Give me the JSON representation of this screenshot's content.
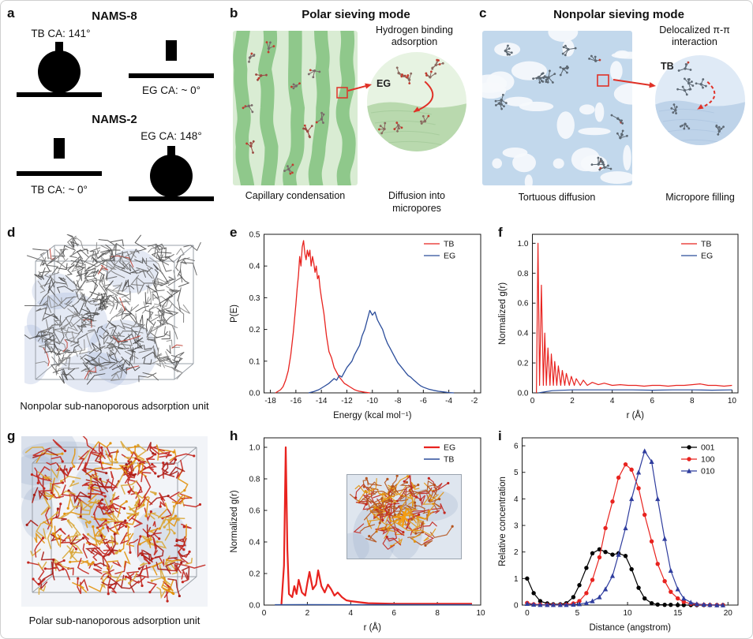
{
  "figure": {
    "background": "#ffffff",
    "panels": {
      "a": {
        "label": "a",
        "groups": [
          {
            "title": "NAMS-8",
            "left_label": "TB CA: 141°",
            "right_label": "EG CA: ~ 0°"
          },
          {
            "title": "NAMS-2",
            "left_label": "TB CA: ~ 0°",
            "right_label": "EG CA: 148°"
          }
        ]
      },
      "b": {
        "label": "b",
        "title": "Polar sieving mode",
        "inset_title": "Hydrogen binding adsorption",
        "molecule_label": "EG",
        "caption_left": "Capillary condensation",
        "caption_right": "Diffusion into micropores"
      },
      "c": {
        "label": "c",
        "title": "Nonpolar sieving mode",
        "inset_title": "Delocalized π-π interaction",
        "molecule_label": "TB",
        "caption_left": "Tortuous diffusion",
        "caption_right": "Micropore filling"
      },
      "d": {
        "label": "d",
        "caption": "Nonpolar sub-nanoporous adsorption unit"
      },
      "e": {
        "label": "e"
      },
      "f": {
        "label": "f"
      },
      "g": {
        "label": "g",
        "caption": "Polar sub-nanoporous adsorption unit"
      },
      "h": {
        "label": "h"
      },
      "i": {
        "label": "i"
      }
    },
    "colors": {
      "tb_red": "#e8231f",
      "eg_blue": "#2b4d9b",
      "polar_green": "#8bc687",
      "nonpolar_blue": "#c2d8ec",
      "arrow_red": "#e03127"
    }
  },
  "chart_data": [
    {
      "id": "e",
      "type": "line",
      "title": "",
      "xlabel": "Energy (kcal mol⁻¹)",
      "ylabel": "P(E)",
      "xlim": [
        -18.5,
        -1.5
      ],
      "ylim": [
        0,
        0.5
      ],
      "xticks": [
        -18,
        -16,
        -14,
        -12,
        -10,
        -8,
        -6,
        -4,
        -2
      ],
      "xtick_labels": [
        "-18",
        "-16",
        "-14",
        "-12",
        "-10",
        "-8",
        "-6",
        "-4",
        "-2"
      ],
      "yticks": [
        0,
        0.1,
        0.2,
        0.3,
        0.4,
        0.5
      ],
      "ytick_labels": [
        "0.0",
        "0.1",
        "0.2",
        "0.3",
        "0.4",
        "0.5"
      ],
      "grid": false,
      "legend_position": "top-right",
      "series": [
        {
          "name": "TB",
          "color": "#e8231f",
          "width": 1.3,
          "x": [
            -17.6,
            -17.4,
            -17.2,
            -17,
            -16.8,
            -16.6,
            -16.4,
            -16.2,
            -16,
            -15.9,
            -15.8,
            -15.7,
            -15.6,
            -15.5,
            -15.4,
            -15.3,
            -15.2,
            -15.1,
            -15,
            -14.9,
            -14.8,
            -14.7,
            -14.6,
            -14.5,
            -14.4,
            -14.3,
            -14.2,
            -14.1,
            -14,
            -13.8,
            -13.6,
            -13.4,
            -13.2,
            -13,
            -12.8,
            -12.6,
            -12.4,
            -12.2,
            -12,
            -11.8,
            -11.6,
            -11.4,
            -11.2,
            -11,
            -10.6,
            -10.2
          ],
          "y": [
            0,
            0.005,
            0.01,
            0.02,
            0.04,
            0.07,
            0.12,
            0.19,
            0.28,
            0.33,
            0.37,
            0.43,
            0.4,
            0.46,
            0.48,
            0.44,
            0.42,
            0.45,
            0.43,
            0.45,
            0.4,
            0.43,
            0.41,
            0.38,
            0.4,
            0.36,
            0.37,
            0.33,
            0.3,
            0.25,
            0.18,
            0.13,
            0.11,
            0.08,
            0.065,
            0.05,
            0.04,
            0.03,
            0.025,
            0.02,
            0.015,
            0.01,
            0.007,
            0.005,
            0.002,
            0
          ]
        },
        {
          "name": "EG",
          "color": "#2b4d9b",
          "width": 1.3,
          "x": [
            -15,
            -14.6,
            -14.2,
            -13.8,
            -13.4,
            -13,
            -12.8,
            -12.6,
            -12.4,
            -12.2,
            -12,
            -11.8,
            -11.6,
            -11.4,
            -11.2,
            -11,
            -10.8,
            -10.6,
            -10.4,
            -10.2,
            -10,
            -9.8,
            -9.6,
            -9.4,
            -9.2,
            -9,
            -8.8,
            -8.6,
            -8.4,
            -8.2,
            -8,
            -7.8,
            -7.6,
            -7.4,
            -7.2,
            -7,
            -6.8,
            -6.6,
            -6.4,
            -6.2,
            -6,
            -5.6,
            -5.2,
            -4.8,
            -4.4,
            -4,
            -3.6
          ],
          "y": [
            0,
            0.004,
            0.01,
            0.02,
            0.03,
            0.045,
            0.04,
            0.055,
            0.05,
            0.065,
            0.08,
            0.09,
            0.1,
            0.12,
            0.135,
            0.15,
            0.18,
            0.2,
            0.23,
            0.26,
            0.245,
            0.255,
            0.23,
            0.215,
            0.2,
            0.175,
            0.155,
            0.14,
            0.125,
            0.11,
            0.095,
            0.085,
            0.075,
            0.065,
            0.055,
            0.05,
            0.042,
            0.035,
            0.028,
            0.022,
            0.018,
            0.012,
            0.008,
            0.005,
            0.003,
            0.001,
            0
          ]
        }
      ]
    },
    {
      "id": "f",
      "type": "line",
      "title": "",
      "xlabel": "r (Å)",
      "ylabel": "Normalized g(r)",
      "xlim": [
        0,
        10.3
      ],
      "ylim": [
        0,
        1.06
      ],
      "xticks": [
        0,
        2,
        4,
        6,
        8,
        10
      ],
      "xtick_labels": [
        "0",
        "2",
        "4",
        "6",
        "8",
        "10"
      ],
      "yticks": [
        0,
        0.2,
        0.4,
        0.6,
        0.8,
        1.0
      ],
      "ytick_labels": [
        "0.0",
        "0.2",
        "0.4",
        "0.6",
        "0.8",
        "1.0"
      ],
      "grid": false,
      "legend_position": "top-right",
      "series": [
        {
          "name": "TB",
          "color": "#e8231f",
          "width": 1.2,
          "x": [
            0.2,
            0.28,
            0.36,
            0.45,
            0.55,
            0.62,
            0.7,
            0.78,
            0.88,
            0.95,
            1.05,
            1.12,
            1.22,
            1.3,
            1.42,
            1.5,
            1.62,
            1.7,
            1.85,
            1.95,
            2.1,
            2.2,
            2.4,
            2.55,
            2.75,
            3.0,
            3.3,
            3.6,
            4.0,
            4.4,
            4.8,
            5.2,
            5.6,
            6.0,
            6.4,
            6.8,
            7.2,
            7.6,
            8.0,
            8.4,
            8.8,
            9.2,
            9.6,
            10.0
          ],
          "y": [
            0,
            1.0,
            0.05,
            0.72,
            0.05,
            0.4,
            0.05,
            0.3,
            0.05,
            0.26,
            0.05,
            0.21,
            0.05,
            0.18,
            0.05,
            0.15,
            0.05,
            0.13,
            0.05,
            0.11,
            0.05,
            0.095,
            0.05,
            0.085,
            0.05,
            0.07,
            0.055,
            0.065,
            0.05,
            0.055,
            0.05,
            0.05,
            0.045,
            0.05,
            0.05,
            0.045,
            0.05,
            0.05,
            0.055,
            0.06,
            0.05,
            0.05,
            0.045,
            0.05
          ]
        },
        {
          "name": "EG",
          "color": "#2b4d9b",
          "width": 1.2,
          "x": [
            0.3,
            1,
            2,
            3,
            4,
            5,
            6,
            7,
            8,
            9,
            10
          ],
          "y": [
            0,
            0.015,
            0.02,
            0.02,
            0.02,
            0.02,
            0.018,
            0.02,
            0.02,
            0.018,
            0.02
          ]
        }
      ]
    },
    {
      "id": "h",
      "type": "line",
      "title": "",
      "xlabel": "r (Å)",
      "ylabel": "Normalized g(r)",
      "xlim": [
        0,
        10
      ],
      "ylim": [
        0,
        1.06
      ],
      "xticks": [
        0,
        2,
        4,
        6,
        8,
        10
      ],
      "xtick_labels": [
        "0",
        "2",
        "4",
        "6",
        "8",
        "10"
      ],
      "yticks": [
        0,
        0.2,
        0.4,
        0.6,
        0.8,
        1.0
      ],
      "ytick_labels": [
        "0.0",
        "0.2",
        "0.4",
        "0.6",
        "0.8",
        "1.0"
      ],
      "grid": false,
      "legend_position": "top-right",
      "series": [
        {
          "name": "EG",
          "color": "#e8231f",
          "width": 2.2,
          "x": [
            0.8,
            0.92,
            1.0,
            1.08,
            1.15,
            1.3,
            1.4,
            1.5,
            1.6,
            1.75,
            1.9,
            2.0,
            2.1,
            2.25,
            2.4,
            2.5,
            2.65,
            2.8,
            2.95,
            3.1,
            3.25,
            3.4,
            3.6,
            3.8,
            4.0,
            4.4,
            4.8,
            5.4,
            6.0,
            7.0,
            8.0,
            9.0,
            9.6
          ],
          "y": [
            0,
            0.25,
            1.0,
            0.35,
            0.07,
            0.05,
            0.12,
            0.07,
            0.16,
            0.08,
            0.06,
            0.14,
            0.21,
            0.1,
            0.13,
            0.22,
            0.12,
            0.08,
            0.13,
            0.1,
            0.06,
            0.08,
            0.05,
            0.03,
            0.025,
            0.018,
            0.012,
            0.01,
            0.008,
            0.008,
            0.008,
            0.008,
            0.008
          ]
        },
        {
          "name": "TB",
          "color": "#2b4d9b",
          "width": 1.4,
          "x": [
            0.5,
            2,
            4,
            6,
            8,
            9.6
          ],
          "y": [
            0.002,
            0.003,
            0.002,
            0.003,
            0.002,
            0.002
          ]
        }
      ]
    },
    {
      "id": "i",
      "type": "line",
      "title": "",
      "xlabel": "Distance (angstrom)",
      "ylabel": "Relative concentration",
      "xlim": [
        -0.5,
        21
      ],
      "ylim": [
        0,
        6.3
      ],
      "xticks": [
        0,
        5,
        10,
        15,
        20
      ],
      "xtick_labels": [
        "0",
        "5",
        "10",
        "15",
        "20"
      ],
      "yticks": [
        0,
        1,
        2,
        3,
        4,
        5,
        6
      ],
      "ytick_labels": [
        "0",
        "1",
        "2",
        "3",
        "4",
        "5",
        "6"
      ],
      "grid": false,
      "legend_position": "top-right",
      "series": [
        {
          "name": "001",
          "color": "#000000",
          "width": 1.2,
          "marker": "circle",
          "x": [
            0,
            0.65,
            1.3,
            2,
            2.6,
            3.3,
            3.9,
            4.6,
            5.2,
            5.9,
            6.5,
            7.2,
            7.8,
            8.5,
            9.1,
            9.8,
            10.4,
            11.1,
            11.7,
            12.4,
            13,
            13.7,
            14.3,
            15,
            15.6,
            16.3,
            16.9,
            17.6,
            18.2,
            18.9,
            19.5
          ],
          "y": [
            1.0,
            0.45,
            0.15,
            0.06,
            0.03,
            0.03,
            0.07,
            0.3,
            0.75,
            1.4,
            1.95,
            2.1,
            2.0,
            1.9,
            1.95,
            1.85,
            1.35,
            0.65,
            0.25,
            0.07,
            0.02,
            0.01,
            0.01,
            0,
            0,
            0,
            0,
            0,
            0,
            0,
            0
          ]
        },
        {
          "name": "100",
          "color": "#e8231f",
          "width": 1.2,
          "marker": "circle",
          "x": [
            0,
            0.65,
            1.3,
            2,
            2.6,
            3.3,
            3.9,
            4.6,
            5.2,
            5.9,
            6.5,
            7.2,
            7.8,
            8.5,
            9.1,
            9.8,
            10.4,
            11.1,
            11.7,
            12.4,
            13,
            13.7,
            14.3,
            15,
            15.6,
            16.3,
            16.9,
            17.6,
            18.2,
            18.9,
            19.5
          ],
          "y": [
            0.08,
            0.03,
            0.02,
            0.01,
            0.01,
            0.01,
            0.02,
            0.06,
            0.15,
            0.45,
            0.95,
            1.8,
            2.9,
            3.9,
            4.8,
            5.3,
            5.1,
            4.4,
            3.4,
            2.4,
            1.55,
            0.9,
            0.5,
            0.25,
            0.12,
            0.05,
            0.02,
            0.01,
            0,
            0,
            0
          ]
        },
        {
          "name": "010",
          "color": "#2f3d9e",
          "width": 1.2,
          "marker": "triangle",
          "x": [
            0,
            0.65,
            1.3,
            2,
            2.6,
            3.3,
            3.9,
            4.6,
            5.2,
            5.9,
            6.5,
            7.2,
            7.8,
            8.5,
            9.1,
            9.8,
            10.4,
            11.1,
            11.7,
            12.4,
            13,
            13.7,
            14.3,
            15,
            15.6,
            16.3,
            16.9,
            17.6,
            18.2,
            18.9,
            19.5
          ],
          "y": [
            0.05,
            0.02,
            0.01,
            0.01,
            0.01,
            0.01,
            0.01,
            0.02,
            0.04,
            0.08,
            0.15,
            0.3,
            0.6,
            1.1,
            1.9,
            2.9,
            4.0,
            5.0,
            5.8,
            5.4,
            4.0,
            2.5,
            1.3,
            0.6,
            0.25,
            0.1,
            0.04,
            0.02,
            0.01,
            0,
            0
          ]
        }
      ]
    }
  ]
}
